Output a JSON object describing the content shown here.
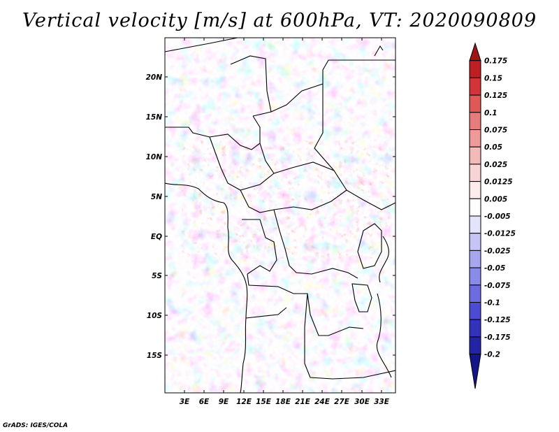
{
  "title": "Vertical velocity [m/s] at 600hPa, VT: 2020090809",
  "credit": "GrADS: IGES/COLA",
  "lat_labels": [
    "20N",
    "15N",
    "10N",
    "5N",
    "EQ",
    "5S",
    "10S",
    "15S"
  ],
  "lon_labels": [
    "3E",
    "6E",
    "9E",
    "12E",
    "15E",
    "18E",
    "21E",
    "24E",
    "27E",
    "30E",
    "33E"
  ],
  "legend": {
    "labels": [
      "0.175",
      "0.15",
      "0.125",
      "0.1",
      "0.075",
      "0.05",
      "0.025",
      "0.0125",
      "0.005",
      "-0.005",
      "-0.0125",
      "-0.025",
      "-0.05",
      "-0.075",
      "-0.1",
      "-0.125",
      "-0.175",
      "-0.2"
    ],
    "colors": [
      "#a01418",
      "#bd1f22",
      "#d3343a",
      "#e05959",
      "#e77c7c",
      "#ee9a9a",
      "#f4b9b9",
      "#f8d4d4",
      "#fcecec",
      "#ffffff",
      "#e3e3fb",
      "#c6c6f6",
      "#a7a7ef",
      "#8a8ae8",
      "#6c6ce0",
      "#4c4cd2",
      "#3232bb",
      "#2323a6",
      "#15158a"
    ]
  },
  "colors": {
    "positive": "#e15a5a",
    "negative": "#6a6ae6",
    "background": "#ffffff"
  }
}
